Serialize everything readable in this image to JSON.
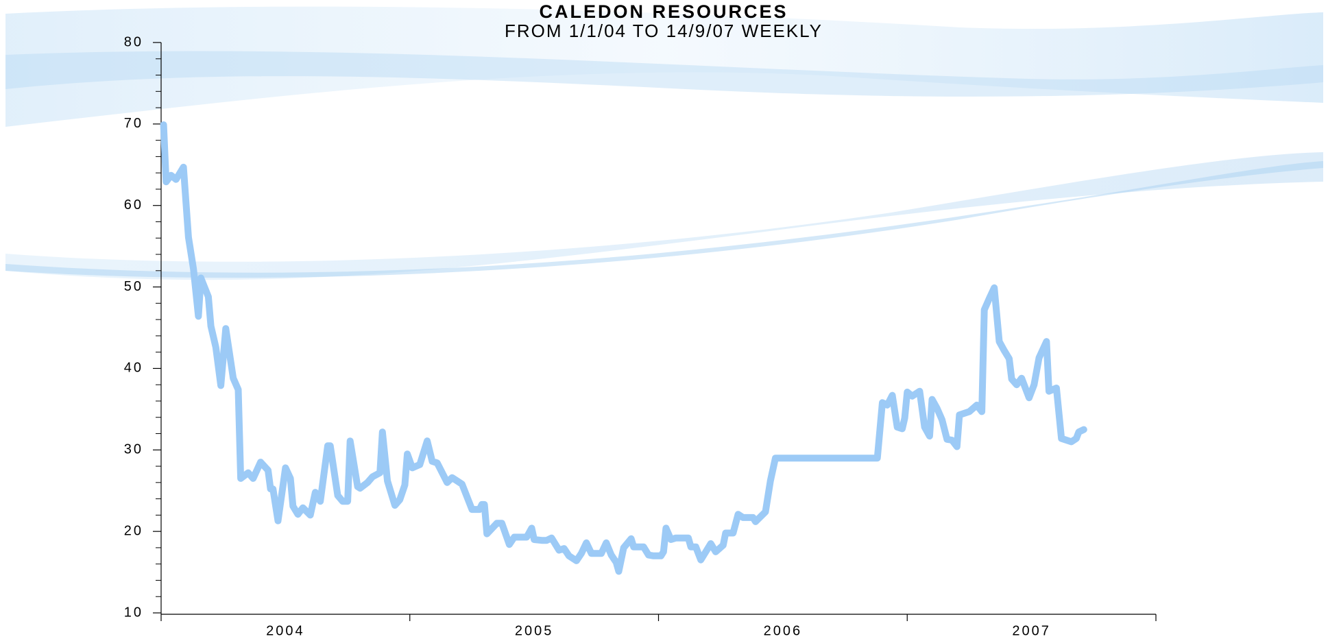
{
  "chart_data": {
    "type": "line",
    "title": "CALEDON RESOURCES",
    "subtitle": "FROM 1/1/04 TO 14/9/07 WEEKLY",
    "x": [
      2004.01,
      2004.02,
      2004.04,
      2004.06,
      2004.09,
      2004.11,
      2004.13,
      2004.15,
      2004.16,
      2004.19,
      2004.2,
      2004.22,
      2004.24,
      2004.26,
      2004.29,
      2004.31,
      2004.32,
      2004.35,
      2004.37,
      2004.4,
      2004.43,
      2004.44,
      2004.45,
      2004.47,
      2004.5,
      2004.52,
      2004.53,
      2004.55,
      2004.57,
      2004.6,
      2004.62,
      2004.64,
      2004.67,
      2004.68,
      2004.71,
      2004.73,
      2004.75,
      2004.76,
      2004.79,
      2004.8,
      2004.83,
      2004.85,
      2004.88,
      2004.89,
      2004.91,
      2004.94,
      2004.96,
      2004.98,
      2004.99,
      2005.01,
      2005.04,
      2005.07,
      2005.09,
      2005.11,
      2005.15,
      2005.17,
      2005.21,
      2005.25,
      2005.28,
      2005.29,
      2005.3,
      2005.31,
      2005.35,
      2005.37,
      2005.4,
      2005.42,
      2005.47,
      2005.49,
      2005.5,
      2005.53,
      2005.55,
      2005.57,
      2005.6,
      2005.62,
      2005.64,
      2005.67,
      2005.69,
      2005.71,
      2005.73,
      2005.77,
      2005.79,
      2005.81,
      2005.83,
      2005.84,
      2005.86,
      2005.89,
      2005.9,
      2005.94,
      2005.96,
      2005.98,
      2006.01,
      2006.02,
      2006.03,
      2006.05,
      2006.07,
      2006.12,
      2006.13,
      2006.15,
      2006.17,
      2006.21,
      2006.23,
      2006.26,
      2006.27,
      2006.3,
      2006.32,
      2006.34,
      2006.38,
      2006.39,
      2006.43,
      2006.45,
      2006.47,
      2006.49,
      2006.88,
      2006.9,
      2006.92,
      2006.94,
      2006.96,
      2006.98,
      2006.99,
      2007.0,
      2007.02,
      2007.05,
      2007.07,
      2007.09,
      2007.1,
      2007.12,
      2007.14,
      2007.16,
      2007.18,
      2007.2,
      2007.21,
      2007.25,
      2007.28,
      2007.3,
      2007.31,
      2007.33,
      2007.35,
      2007.37,
      2007.39,
      2007.41,
      2007.42,
      2007.44,
      2007.46,
      2007.49,
      2007.51,
      2007.53,
      2007.56,
      2007.57,
      2007.6,
      2007.62,
      2007.66,
      2007.68,
      2007.69,
      2007.71
    ],
    "series": [
      {
        "color": "#9ccaf6",
        "values": [
          69.9,
          62.9,
          63.7,
          63.2,
          64.7,
          56.1,
          52.2,
          46.4,
          51.1,
          48.8,
          45.2,
          42.6,
          37.9,
          44.9,
          38.8,
          37.4,
          26.5,
          27.2,
          26.5,
          28.5,
          27.5,
          25.2,
          25.2,
          21.3,
          27.8,
          26.5,
          23.1,
          22.1,
          22.9,
          22.0,
          24.8,
          23.7,
          30.5,
          30.5,
          24.4,
          23.7,
          23.7,
          31.1,
          25.5,
          25.3,
          26.0,
          26.7,
          27.2,
          32.2,
          26.2,
          23.2,
          23.9,
          25.7,
          29.5,
          27.8,
          28.2,
          31.1,
          28.6,
          28.4,
          26.0,
          26.6,
          25.8,
          22.7,
          22.7,
          23.3,
          23.3,
          19.7,
          21.0,
          21.0,
          18.4,
          19.3,
          19.3,
          20.4,
          19.0,
          18.9,
          18.9,
          19.2,
          17.7,
          17.9,
          17.0,
          16.4,
          17.3,
          18.6,
          17.3,
          17.3,
          18.6,
          17.1,
          16.2,
          15.1,
          18.0,
          19.1,
          18.1,
          18.1,
          17.1,
          17.0,
          17.0,
          17.5,
          20.4,
          19.0,
          19.2,
          19.2,
          18.1,
          18.1,
          16.5,
          18.5,
          17.5,
          18.3,
          19.8,
          19.8,
          22.1,
          21.7,
          21.7,
          21.2,
          22.4,
          26.2,
          29.0,
          29.0,
          29.0,
          35.8,
          35.5,
          36.7,
          32.8,
          32.6,
          33.9,
          37.1,
          36.6,
          37.2,
          32.8,
          31.7,
          36.2,
          35.1,
          33.7,
          31.3,
          31.2,
          30.4,
          34.3,
          34.7,
          35.5,
          34.7,
          47.2,
          48.6,
          49.9,
          43.3,
          42.2,
          41.2,
          38.7,
          38.0,
          38.8,
          36.4,
          38.0,
          41.3,
          43.3,
          37.2,
          37.6,
          31.4,
          31.0,
          31.4,
          32.2,
          32.5
        ]
      }
    ],
    "xlim": [
      2004,
      2008
    ],
    "xticks": [
      2004,
      2005,
      2006,
      2007,
      2008
    ],
    "xtick_labels": [
      {
        "value": 2004.5,
        "label": "2004"
      },
      {
        "value": 2005.5,
        "label": "2005"
      },
      {
        "value": 2006.5,
        "label": "2006"
      },
      {
        "value": 2007.5,
        "label": "2007"
      }
    ],
    "ylim": [
      10,
      80
    ],
    "yticks": [
      10,
      20,
      30,
      40,
      50,
      60,
      70,
      80
    ],
    "yminorticks": [
      12,
      14,
      16,
      18,
      22,
      24,
      26,
      28,
      32,
      34,
      36,
      38,
      42,
      44,
      46,
      48,
      52,
      54,
      56,
      58,
      62,
      64,
      66,
      68,
      72,
      74,
      76,
      78
    ],
    "grid": false
  }
}
